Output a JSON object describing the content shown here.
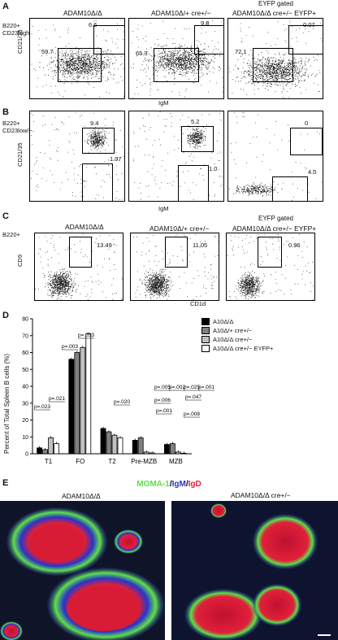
{
  "panelA": {
    "letter": "A",
    "gate_top": "EYFP gated",
    "titles": [
      "ADAM10Δ/Δ",
      "ADAM10Δ/+ cre+/−",
      "ADAM10Δ/Δ cre+/− EYFP+"
    ],
    "ylabel_gate_1": "B220+",
    "ylabel_gate_2": "CD23high",
    "ylabel_axis": "CD21/35",
    "xlabel": "IgM",
    "plots": [
      {
        "upper": "6.6",
        "lower": "59.7"
      },
      {
        "upper": "9.8",
        "lower": "65.3"
      },
      {
        "upper": "0.07",
        "lower": "72.1"
      }
    ]
  },
  "panelB": {
    "letter": "B",
    "ylabel_gate_1": "B220+",
    "ylabel_gate_2": "CD23low/−",
    "ylabel_axis": "CD21/35",
    "xlabel": "IgM",
    "plots": [
      {
        "upper": "9.4",
        "lower": "1.97"
      },
      {
        "upper": "5.2",
        "lower": "1.0"
      },
      {
        "upper": "0",
        "lower": "4.0"
      }
    ]
  },
  "panelC": {
    "letter": "C",
    "gate_top": "EYFP gated",
    "titles": [
      "ADAM10Δ/Δ",
      "ADAM10Δ/+ cre+/−",
      "ADAM10Δ/Δ cre+/− EYFP+"
    ],
    "ylabel_gate": "B220+",
    "ylabel_axis": "CD9",
    "xlabel": "CD1d",
    "plots": [
      {
        "value": "13.49"
      },
      {
        "value": "11.05"
      },
      {
        "value": "0.96"
      }
    ]
  },
  "panelD": {
    "letter": "D",
    "chart_data": {
      "type": "bar",
      "ylabel": "Percent of Total Spleen B cells (%)",
      "ylim": [
        0,
        80
      ],
      "yticks": [
        "0",
        "10",
        "20",
        "30",
        "40",
        "50",
        "60",
        "70",
        "80"
      ],
      "categories": [
        "T1",
        "FO",
        "T2",
        "Pre-MZB",
        "MZB"
      ],
      "series": [
        {
          "name": "A10Δ/Δ",
          "color": "#000000",
          "values": [
            3.5,
            56,
            15,
            8,
            5.5
          ]
        },
        {
          "name": "A10Δ/+ cre+/−",
          "color": "#808080",
          "values": [
            2.5,
            60,
            13,
            9.5,
            6
          ]
        },
        {
          "name": "A10Δ/Δ cre+/−",
          "color": "#c0c0c0",
          "values": [
            9.5,
            63,
            11,
            1,
            1
          ]
        },
        {
          "name": "A10Δ/Δ cre+/− EYFP+",
          "color": "#ffffff",
          "values": [
            6,
            71,
            9.5,
            0.5,
            0.3
          ]
        }
      ],
      "annotations": [
        "p=.023",
        "p=.021",
        "p=.003",
        "p=.033",
        "p=.020",
        "p=.005",
        "p=.002",
        "p=.006",
        "p=.001",
        "p=.025",
        "p=.001",
        "p=.047",
        "p=.008"
      ]
    }
  },
  "panelE": {
    "letter": "E",
    "stain_1": "MOMA-1",
    "stain_sep1": "/",
    "stain_2": "IgM",
    "stain_sep2": "/",
    "stain_3": "IgD",
    "left_title": "ADAM10Δ/Δ",
    "right_title": "ADAM10Δ/Δ cre+/−",
    "colors": {
      "green": "#5fe04a",
      "blue": "#2a35c8",
      "red": "#e0203a"
    }
  }
}
